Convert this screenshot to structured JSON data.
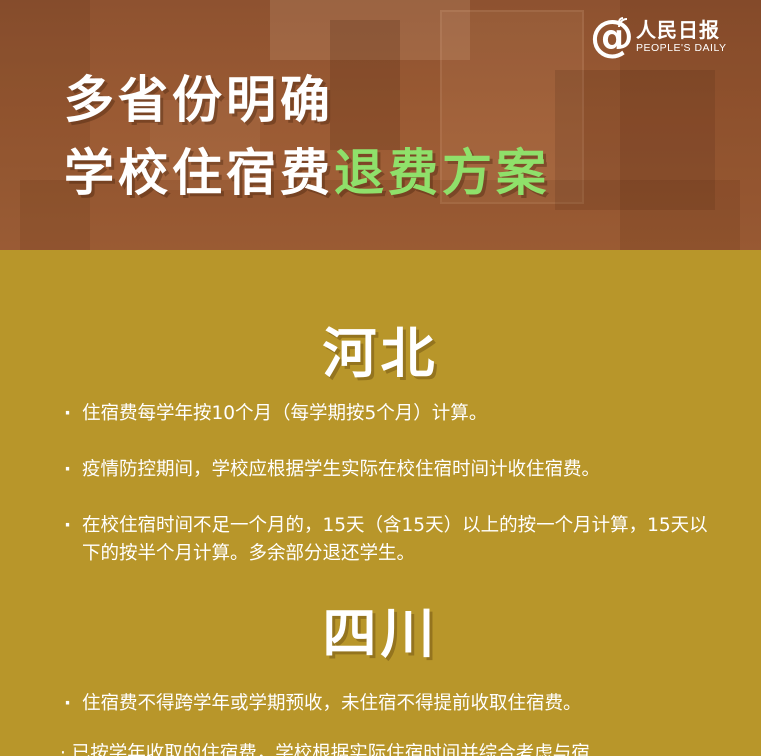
{
  "brand": {
    "name_cn": "人民日报",
    "name_en": "PEOPLE'S DAILY",
    "symbol": "@"
  },
  "header": {
    "title_line1": "多省份明确",
    "title_line2_main": "学校住宿费",
    "title_line2_accent": "退费方案",
    "accent_color": "#8fe06a"
  },
  "sections": [
    {
      "title": "河北",
      "items": [
        "住宿费每学年按10个月（每学期按5个月）计算。",
        "疫情防控期间，学校应根据学生实际在校住宿时间计收住宿费。",
        "在校住宿时间不足一个月的，15天（含15天）以上的按一个月计算，15天以下的按半个月计算。多余部分退还学生。"
      ]
    },
    {
      "title": "四川",
      "items": [
        "住宿费不得跨学年或学期预收，未住宿不得提前收取住宿费。"
      ],
      "partial_item": "已按学年收取的住宿费，学校根据实际住宿时间并综合考虑与宿"
    }
  ]
}
